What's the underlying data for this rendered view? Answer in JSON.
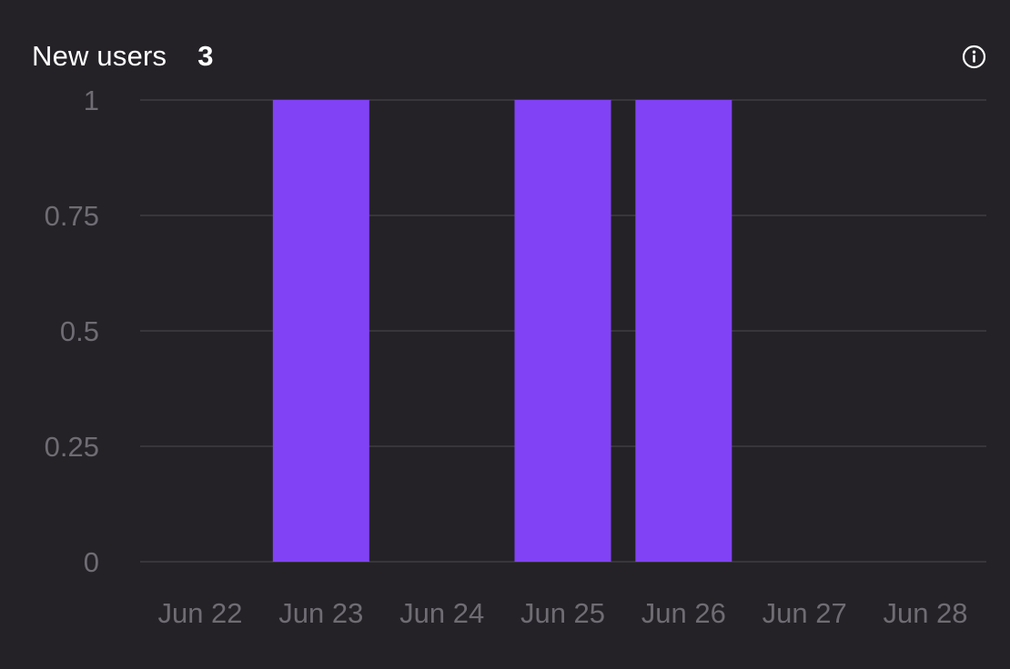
{
  "card": {
    "title": "New users",
    "total": "3",
    "info_icon": "info-icon"
  },
  "colors": {
    "background": "#242227",
    "bar": "#8142f5",
    "grid": "#3e3c42",
    "tick_text": "#6f6d73",
    "title_text": "#ffffff"
  },
  "chart_data": {
    "type": "bar",
    "categories": [
      "Jun 22",
      "Jun 23",
      "Jun 24",
      "Jun 25",
      "Jun 26",
      "Jun 27",
      "Jun 28"
    ],
    "values": [
      0,
      1,
      0,
      1,
      1,
      0,
      0
    ],
    "yticks": [
      "0",
      "0.25",
      "0.5",
      "0.75",
      "1"
    ],
    "ytick_values": [
      0,
      0.25,
      0.5,
      0.75,
      1
    ],
    "ylim": [
      0,
      1
    ],
    "grid": true,
    "legend": "none"
  }
}
